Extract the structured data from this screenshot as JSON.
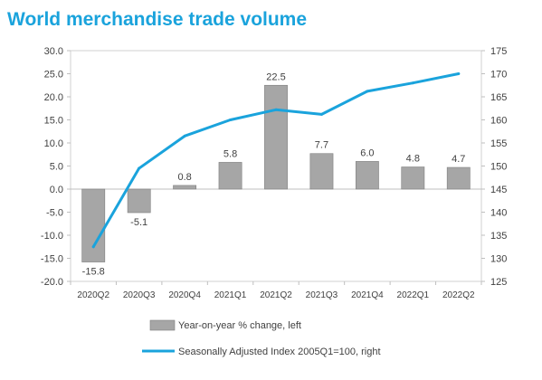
{
  "title": "World merchandise trade volume",
  "chart_data": {
    "type": "bar",
    "categories": [
      "2020Q2",
      "2020Q3",
      "2020Q4",
      "2021Q1",
      "2021Q2",
      "2021Q3",
      "2021Q4",
      "2022Q1",
      "2022Q2"
    ],
    "series": [
      {
        "name": "Year-on-year % change, left",
        "type": "bar",
        "axis": "left",
        "color": "#a6a6a6",
        "values": [
          -15.8,
          -5.1,
          0.8,
          5.8,
          22.5,
          7.7,
          6.0,
          4.8,
          4.7
        ],
        "labels": [
          "-15.8",
          "-5.1",
          "0.8",
          "5.8",
          "22.5",
          "7.7",
          "6.0",
          "4.8",
          "4.7"
        ]
      },
      {
        "name": "Seasonally Adjusted Index 2005Q1=100, right",
        "type": "line",
        "axis": "right",
        "color": "#1aa3dc",
        "values": [
          132.5,
          149.5,
          156.5,
          160.0,
          162.2,
          161.2,
          166.2,
          168.0,
          170.0
        ]
      }
    ],
    "left_axis": {
      "range": [
        -20,
        30
      ],
      "ticks": [
        "-20.0",
        "-15.0",
        "-10.0",
        "-5.0",
        "0.0",
        "5.0",
        "10.0",
        "15.0",
        "20.0",
        "25.0",
        "30.0"
      ]
    },
    "right_axis": {
      "range": [
        125,
        175
      ],
      "ticks": [
        "125",
        "130",
        "135",
        "140",
        "145",
        "150",
        "155",
        "160",
        "165",
        "170",
        "175"
      ]
    },
    "grid": false,
    "legend": "bottom"
  }
}
